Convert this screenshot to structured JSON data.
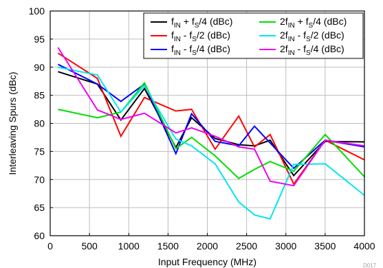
{
  "chart_data": {
    "type": "line",
    "xlabel": "Input Frequency (MHz)",
    "ylabel": "Interleaving Spurs (dBc)",
    "xlim": [
      0,
      4000
    ],
    "ylim": [
      60,
      100
    ],
    "xticks": [
      0,
      500,
      1000,
      1500,
      2000,
      2500,
      3000,
      3500,
      4000
    ],
    "yticks": [
      60,
      65,
      70,
      75,
      80,
      85,
      90,
      95,
      100
    ],
    "grid": true,
    "legend_position": "top-right",
    "figure_ref": "D017",
    "series": [
      {
        "name": "fIN + fS/4 (dBc)",
        "base": "f",
        "sub1": "IN",
        "mid": " + f",
        "sub2": "S",
        "tail": "/4 (dBc)",
        "color": "#000000",
        "x": [
          100,
          600,
          900,
          1200,
          1600,
          1800,
          2100,
          2400,
          2600,
          2800,
          3100,
          3500,
          4000
        ],
        "y": [
          89.2,
          87.0,
          80.6,
          86.2,
          75.7,
          81.0,
          77.3,
          76.2,
          76.0,
          77.0,
          70.7,
          76.8,
          76.7
        ]
      },
      {
        "name": "fIN - fS/2 (dBc)",
        "base": "f",
        "sub1": "IN",
        "mid": " - f",
        "sub2": "S",
        "tail": "/2 (dBc)",
        "color": "#ff0000",
        "x": [
          100,
          600,
          900,
          1200,
          1600,
          1800,
          2100,
          2400,
          2600,
          2800,
          3100,
          3500,
          4000
        ],
        "y": [
          92.5,
          88.0,
          77.7,
          84.6,
          82.2,
          82.5,
          75.4,
          81.3,
          75.8,
          78.0,
          69.2,
          77.0,
          73.5
        ]
      },
      {
        "name": "fIN - fS/4 (dBc)",
        "base": "f",
        "sub1": "IN",
        "mid": " - f",
        "sub2": "S",
        "tail": "/4 (dBc)",
        "color": "#0000ff",
        "x": [
          100,
          600,
          900,
          1200,
          1600,
          1800,
          2100,
          2400,
          2600,
          2800,
          3100,
          3500,
          4000
        ],
        "y": [
          90.5,
          87.0,
          83.9,
          87.0,
          74.6,
          81.7,
          76.8,
          76.0,
          79.5,
          76.5,
          72.0,
          77.0,
          75.8
        ]
      },
      {
        "name": "2fIN + fS/4 (dBc)",
        "base": "2f",
        "sub1": "IN",
        "mid": " + f",
        "sub2": "S",
        "tail": "/4 (dBc)",
        "color": "#00dd00",
        "x": [
          100,
          600,
          900,
          1200,
          1600,
          1800,
          2100,
          2400,
          2600,
          2800,
          3100,
          3500,
          4000
        ],
        "y": [
          82.5,
          81.0,
          82.0,
          87.2,
          75.5,
          77.5,
          74.2,
          70.2,
          71.8,
          73.2,
          71.5,
          78.0,
          70.5
        ]
      },
      {
        "name": "2fIN - fS/2 (dBc)",
        "base": "2f",
        "sub1": "IN",
        "mid": " - f",
        "sub2": "S",
        "tail": "/2 (dBc)",
        "color": "#00e5ee",
        "x": [
          100,
          600,
          900,
          1200,
          1600,
          1800,
          2100,
          2400,
          2600,
          2800,
          3100,
          3500,
          4000
        ],
        "y": [
          90.0,
          88.6,
          82.0,
          86.7,
          77.2,
          76.0,
          72.8,
          66.0,
          63.7,
          63.0,
          72.7,
          72.8,
          67.2
        ]
      },
      {
        "name": "2fIN - fS/4 (dBc)",
        "base": "2f",
        "sub1": "IN",
        "mid": " - f",
        "sub2": "S",
        "tail": "/4 (dBc)",
        "color": "#ee00ee",
        "x": [
          100,
          600,
          900,
          1200,
          1600,
          1800,
          2100,
          2400,
          2600,
          2800,
          3100,
          3500,
          4000
        ],
        "y": [
          93.5,
          82.4,
          80.7,
          81.8,
          78.3,
          79.2,
          77.7,
          75.8,
          75.4,
          69.7,
          68.9,
          77.0,
          76.0
        ]
      }
    ]
  }
}
